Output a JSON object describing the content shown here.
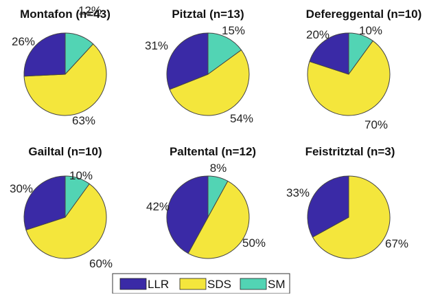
{
  "chart_data": [
    {
      "type": "pie",
      "title": "Montafon (n=43)",
      "categories": [
        "LLR",
        "SDS",
        "SM"
      ],
      "values": [
        26,
        63,
        12
      ],
      "labels": [
        "26%",
        "63%",
        "12%"
      ]
    },
    {
      "type": "pie",
      "title": "Pitztal (n=13)",
      "categories": [
        "LLR",
        "SDS",
        "SM"
      ],
      "values": [
        31,
        54,
        15
      ],
      "labels": [
        "31%",
        "54%",
        "15%"
      ]
    },
    {
      "type": "pie",
      "title": "Defereggental (n=10)",
      "categories": [
        "LLR",
        "SDS",
        "SM"
      ],
      "values": [
        20,
        70,
        10
      ],
      "labels": [
        "20%",
        "70%",
        "10%"
      ]
    },
    {
      "type": "pie",
      "title": "Gailtal (n=10)",
      "categories": [
        "LLR",
        "SDS",
        "SM"
      ],
      "values": [
        30,
        60,
        10
      ],
      "labels": [
        "30%",
        "60%",
        "10%"
      ]
    },
    {
      "type": "pie",
      "title": "Paltental (n=12)",
      "categories": [
        "LLR",
        "SDS",
        "SM"
      ],
      "values": [
        42,
        50,
        8
      ],
      "labels": [
        "42%",
        "50%",
        "8%"
      ]
    },
    {
      "type": "pie",
      "title": "Feistritztal (n=3)",
      "categories": [
        "LLR",
        "SDS",
        "SM"
      ],
      "values": [
        33,
        67,
        0
      ],
      "labels": [
        "33%",
        "67%",
        ""
      ]
    }
  ],
  "legend": {
    "position": "bottom-center",
    "items": [
      {
        "label": "LLR",
        "color": "#3a2aa6"
      },
      {
        "label": "SDS",
        "color": "#f4e63c"
      },
      {
        "label": "SM",
        "color": "#52d4b4"
      }
    ]
  }
}
